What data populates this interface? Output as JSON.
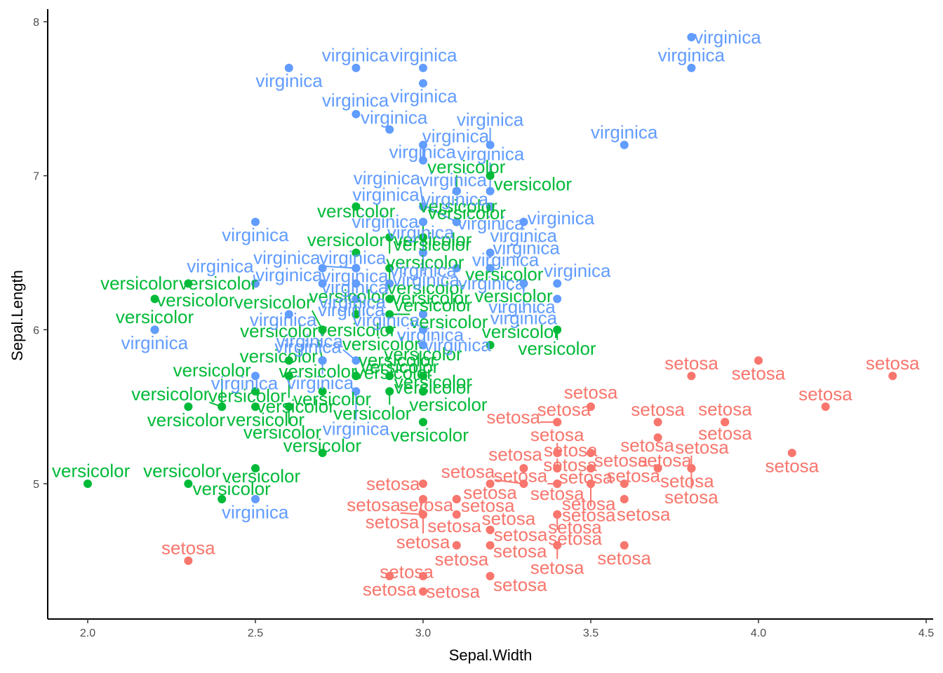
{
  "chart_data": {
    "type": "scatter",
    "xlabel": "Sepal.Width",
    "ylabel": "Sepal.Length",
    "xlim": [
      1.88,
      4.52
    ],
    "ylim": [
      4.12,
      8.08
    ],
    "xticks": [
      "2.0",
      "2.5",
      "3.0",
      "3.5",
      "4.0",
      "4.5"
    ],
    "yticks": [
      "5",
      "6",
      "7",
      "8"
    ],
    "grid": false,
    "legend": "none",
    "colors": {
      "setosa": "#F8766D",
      "versicolor": "#00BA38",
      "virginica": "#619CFF"
    },
    "point_labels": "species name of each point",
    "series": [
      {
        "name": "setosa",
        "points": [
          [
            3.5,
            5.1
          ],
          [
            3.0,
            4.9
          ],
          [
            3.2,
            4.7
          ],
          [
            3.1,
            4.6
          ],
          [
            3.6,
            5.0
          ],
          [
            3.9,
            5.4
          ],
          [
            3.4,
            4.6
          ],
          [
            3.4,
            5.0
          ],
          [
            2.9,
            4.4
          ],
          [
            3.1,
            4.9
          ],
          [
            3.7,
            5.4
          ],
          [
            3.4,
            4.8
          ],
          [
            3.0,
            4.8
          ],
          [
            3.0,
            4.3
          ],
          [
            4.0,
            5.8
          ],
          [
            4.4,
            5.7
          ],
          [
            3.9,
            5.4
          ],
          [
            3.5,
            5.1
          ],
          [
            3.8,
            5.7
          ],
          [
            3.8,
            5.1
          ],
          [
            3.4,
            5.4
          ],
          [
            3.7,
            5.1
          ],
          [
            3.6,
            4.6
          ],
          [
            3.3,
            5.1
          ],
          [
            3.4,
            4.8
          ],
          [
            3.0,
            5.0
          ],
          [
            3.4,
            5.0
          ],
          [
            3.5,
            5.2
          ],
          [
            3.4,
            5.2
          ],
          [
            3.2,
            4.7
          ],
          [
            3.1,
            4.8
          ],
          [
            3.4,
            5.4
          ],
          [
            4.1,
            5.2
          ],
          [
            4.2,
            5.5
          ],
          [
            3.1,
            4.9
          ],
          [
            3.2,
            5.0
          ],
          [
            3.5,
            5.5
          ],
          [
            3.6,
            4.9
          ],
          [
            3.0,
            4.4
          ],
          [
            3.4,
            5.1
          ],
          [
            3.5,
            5.0
          ],
          [
            2.3,
            4.5
          ],
          [
            3.2,
            4.4
          ],
          [
            3.5,
            5.0
          ],
          [
            3.8,
            5.1
          ],
          [
            3.0,
            4.8
          ],
          [
            3.8,
            5.1
          ],
          [
            3.2,
            4.6
          ],
          [
            3.7,
            5.3
          ],
          [
            3.3,
            5.0
          ]
        ]
      },
      {
        "name": "versicolor",
        "points": [
          [
            3.2,
            7.0
          ],
          [
            3.2,
            6.4
          ],
          [
            3.1,
            6.9
          ],
          [
            2.3,
            5.5
          ],
          [
            2.8,
            6.5
          ],
          [
            2.8,
            5.7
          ],
          [
            3.3,
            6.3
          ],
          [
            2.4,
            4.9
          ],
          [
            2.9,
            6.6
          ],
          [
            2.7,
            5.2
          ],
          [
            2.0,
            5.0
          ],
          [
            3.0,
            5.9
          ],
          [
            2.2,
            6.0
          ],
          [
            2.9,
            6.1
          ],
          [
            2.9,
            5.6
          ],
          [
            3.1,
            6.7
          ],
          [
            3.0,
            5.6
          ],
          [
            2.7,
            5.8
          ],
          [
            2.2,
            6.2
          ],
          [
            2.5,
            5.6
          ],
          [
            3.2,
            5.9
          ],
          [
            2.8,
            6.1
          ],
          [
            2.5,
            6.3
          ],
          [
            2.8,
            6.1
          ],
          [
            2.9,
            6.4
          ],
          [
            3.0,
            6.6
          ],
          [
            2.8,
            6.8
          ],
          [
            3.0,
            6.7
          ],
          [
            2.9,
            6.0
          ],
          [
            2.6,
            5.7
          ],
          [
            2.4,
            5.5
          ],
          [
            2.4,
            5.5
          ],
          [
            2.7,
            5.8
          ],
          [
            2.7,
            6.0
          ],
          [
            3.0,
            5.4
          ],
          [
            3.4,
            6.0
          ],
          [
            3.1,
            6.7
          ],
          [
            2.3,
            6.3
          ],
          [
            3.0,
            5.6
          ],
          [
            2.5,
            5.5
          ],
          [
            2.6,
            5.5
          ],
          [
            3.0,
            6.1
          ],
          [
            2.6,
            5.8
          ],
          [
            2.3,
            5.0
          ],
          [
            2.7,
            5.6
          ],
          [
            3.0,
            5.7
          ],
          [
            2.9,
            5.7
          ],
          [
            2.9,
            6.2
          ],
          [
            2.5,
            5.1
          ],
          [
            2.8,
            5.7
          ]
        ]
      },
      {
        "name": "virginica",
        "points": [
          [
            3.3,
            6.3
          ],
          [
            2.7,
            5.8
          ],
          [
            3.0,
            7.1
          ],
          [
            2.9,
            6.3
          ],
          [
            3.0,
            6.5
          ],
          [
            3.0,
            7.6
          ],
          [
            2.5,
            4.9
          ],
          [
            2.9,
            7.3
          ],
          [
            2.5,
            6.7
          ],
          [
            3.6,
            7.2
          ],
          [
            3.2,
            6.5
          ],
          [
            2.7,
            6.4
          ],
          [
            3.0,
            6.8
          ],
          [
            2.5,
            5.7
          ],
          [
            2.8,
            5.8
          ],
          [
            3.2,
            6.4
          ],
          [
            3.0,
            6.5
          ],
          [
            3.8,
            7.7
          ],
          [
            2.6,
            7.7
          ],
          [
            2.2,
            6.0
          ],
          [
            3.2,
            6.9
          ],
          [
            2.8,
            5.6
          ],
          [
            2.8,
            7.7
          ],
          [
            2.7,
            6.3
          ],
          [
            3.3,
            6.7
          ],
          [
            3.2,
            7.2
          ],
          [
            2.8,
            6.2
          ],
          [
            3.0,
            6.1
          ],
          [
            2.8,
            6.4
          ],
          [
            3.0,
            7.2
          ],
          [
            2.8,
            7.4
          ],
          [
            3.8,
            7.9
          ],
          [
            2.8,
            6.4
          ],
          [
            2.8,
            6.3
          ],
          [
            2.6,
            6.1
          ],
          [
            3.0,
            7.7
          ],
          [
            3.4,
            6.3
          ],
          [
            3.1,
            6.4
          ],
          [
            3.0,
            6.0
          ],
          [
            3.1,
            6.9
          ],
          [
            3.1,
            6.7
          ],
          [
            3.1,
            6.9
          ],
          [
            2.7,
            5.8
          ],
          [
            3.2,
            6.8
          ],
          [
            3.3,
            6.7
          ],
          [
            3.0,
            6.7
          ],
          [
            2.5,
            6.3
          ],
          [
            3.0,
            6.5
          ],
          [
            3.4,
            6.2
          ],
          [
            3.0,
            5.9
          ]
        ]
      }
    ]
  }
}
